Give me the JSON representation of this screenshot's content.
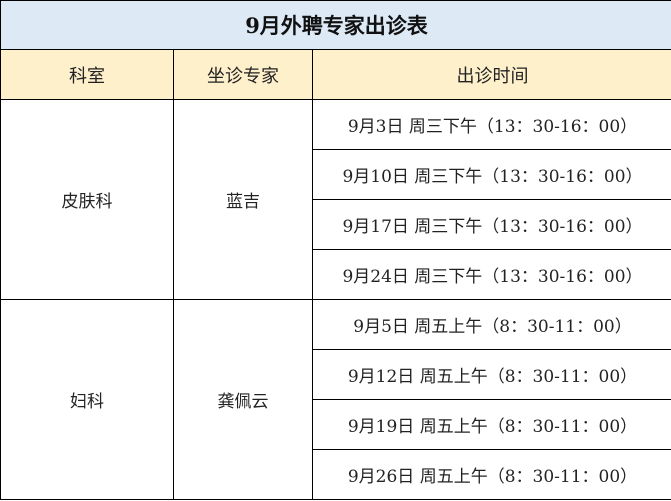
{
  "title": "9月外聘专家出诊表",
  "headers": [
    "科室",
    "坐诊专家",
    "出诊时间"
  ],
  "groups": [
    {
      "department": "皮肤科",
      "expert": "蓝吉",
      "times": [
        "9月3日 周三下午（13：30-16：00）",
        "9月10日 周三下午（13：30-16：00）",
        "9月17日 周三下午（13：30-16：00）",
        "9月24日 周三下午（13：30-16：00）"
      ]
    },
    {
      "department": "妇科",
      "expert": "龚佩云",
      "times": [
        "9月5日 周五上午（8：30-11：00）",
        "9月12日 周五上午（8：30-11：00）",
        "9月19日 周五上午（8：30-11：00）",
        "9月26日 周五上午（8：30-11：00）"
      ]
    }
  ],
  "colors": {
    "title_bg": "#dde9f5",
    "header_bg": "#fff0cc"
  }
}
